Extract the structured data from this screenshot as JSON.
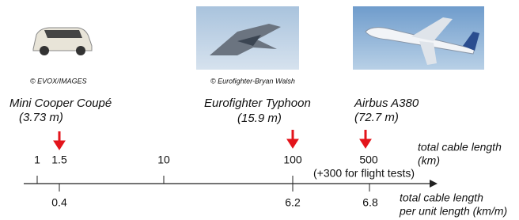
{
  "vehicles": [
    {
      "credit": "© EVOX/IMAGES",
      "name": "Mini Cooper Coupé",
      "length": "(3.73 m)"
    },
    {
      "credit": "© Eurofighter-Bryan Walsh",
      "name": "Eurofighter Typhoon",
      "length": "(15.9 m)"
    },
    {
      "name": "Airbus A380",
      "length": "(72.7 m)"
    }
  ],
  "scale": {
    "top_ticks": [
      "1",
      "1.5",
      "10",
      "100",
      "500"
    ],
    "top_note": "(+300 for flight tests)",
    "top_label": [
      "total cable length",
      "(km)"
    ],
    "bottom_ticks": [
      "0.4",
      "6.2",
      "6.8"
    ],
    "bottom_label": [
      "total cable length",
      "per unit length (km/m)"
    ]
  }
}
